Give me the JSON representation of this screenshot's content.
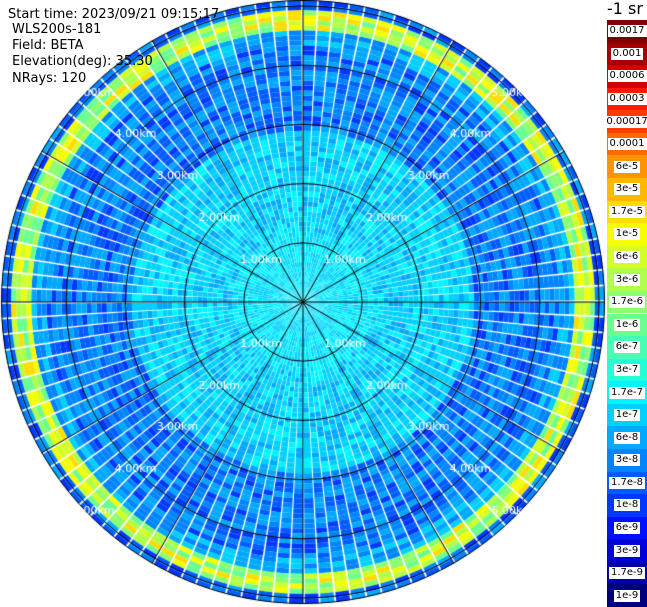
{
  "header": {
    "start_time": "Start time: 2023/09/21 09:15:17",
    "instrument": "WLS200s-181",
    "field": "Field: BETA",
    "elevation": "Elevation(deg): 35.30",
    "nrays": "NRays: 120"
  },
  "colorbar": {
    "unit": "-1 sr",
    "labels": [
      "0.0017",
      "0.001",
      "0.0006",
      "0.0003",
      "0.00017",
      "0.0001",
      "6e-5",
      "3e-5",
      "1.7e-5",
      "1e-5",
      "6e-6",
      "3e-6",
      "1.7e-6",
      "1e-6",
      "6e-7",
      "3e-7",
      "1.7e-7",
      "1e-7",
      "6e-8",
      "3e-8",
      "1.7e-8",
      "1e-8",
      "6e-9",
      "3e-9",
      "1.7e-9",
      "1e-9"
    ],
    "colors": [
      "#7f0000",
      "#a80000",
      "#d40000",
      "#ff1a00",
      "#ff3d00",
      "#ff6a00",
      "#ff9400",
      "#ffb800",
      "#ffdd00",
      "#f5ff00",
      "#d4ff26",
      "#b0ff4a",
      "#8cff6e",
      "#6aff91",
      "#46ffb4",
      "#24ffd8",
      "#00f5ff",
      "#00d0ff",
      "#00a8ff",
      "#0084ff",
      "#005cff",
      "#0038ff",
      "#0010ff",
      "#0000d8",
      "#0000ac",
      "#00007f"
    ]
  },
  "range_rings": {
    "labels": [
      "1.00km",
      "2.00km",
      "3.00km",
      "4.00km",
      "5.00km"
    ],
    "values_km": [
      1,
      2,
      3,
      4,
      5
    ]
  },
  "radial_lines_deg": [
    0,
    30,
    60,
    90,
    120,
    150,
    180,
    210,
    240,
    270,
    300,
    330
  ]
}
